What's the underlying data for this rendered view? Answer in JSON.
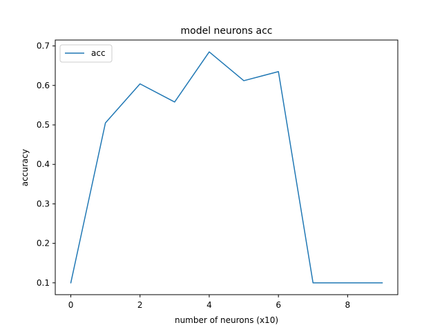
{
  "chart_data": {
    "type": "line",
    "title": "model neurons acc",
    "xlabel": "number of neurons (x10)",
    "ylabel": "accuracy",
    "x": [
      0,
      1,
      2,
      3,
      4,
      5,
      6,
      7,
      8,
      9
    ],
    "series": [
      {
        "name": "acc",
        "color": "#1f77b4",
        "values": [
          0.1,
          0.505,
          0.604,
          0.558,
          0.685,
          0.612,
          0.635,
          0.1,
          0.1,
          0.1
        ]
      }
    ],
    "xlim": [
      -0.45,
      9.45
    ],
    "ylim": [
      0.07,
      0.715
    ],
    "xticks": [
      0,
      2,
      4,
      6,
      8
    ],
    "yticks": [
      0.1,
      0.2,
      0.3,
      0.4,
      0.5,
      0.6,
      0.7
    ],
    "xtick_labels": [
      "0",
      "2",
      "4",
      "6",
      "8"
    ],
    "ytick_labels": [
      "0.1",
      "0.2",
      "0.3",
      "0.4",
      "0.5",
      "0.6",
      "0.7"
    ],
    "grid": false,
    "legend_position": "upper-left"
  }
}
